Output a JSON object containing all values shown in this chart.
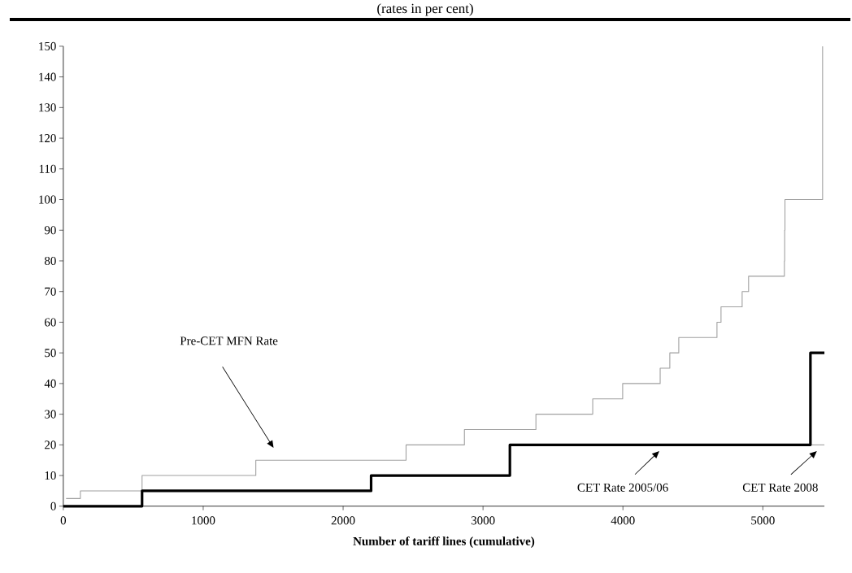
{
  "chart_data": {
    "type": "step",
    "subtitle": "(rates in per cent)",
    "xlabel": "Number of tariff lines (cumulative)",
    "xlim": [
      0,
      5440
    ],
    "ylim": [
      0,
      150
    ],
    "xticks": [
      0,
      1000,
      2000,
      3000,
      4000,
      5000
    ],
    "yticks": [
      0,
      10,
      20,
      30,
      40,
      50,
      60,
      70,
      80,
      90,
      100,
      110,
      120,
      130,
      140,
      150
    ],
    "grid": false,
    "marker": "none",
    "series": [
      {
        "color": "#a0a0a0",
        "x": [
          20,
          122,
          563,
          1376,
          2450,
          2867,
          3378,
          3784,
          3998,
          4266,
          4335,
          4399,
          4672,
          4701,
          4852,
          4898,
          5154,
          5156,
          5158,
          5427
        ],
        "values": [
          2.5,
          5,
          10,
          15,
          20,
          25,
          30,
          35,
          40,
          45,
          50,
          55,
          60,
          65,
          70,
          75,
          80,
          90,
          100,
          150
        ]
      },
      {
        "color": "#a0a0a0",
        "x": [
          5340,
          5440
        ],
        "values": [
          20,
          20
        ]
      },
      {
        "color": "#000000",
        "x": [
          0,
          563,
          2200,
          3192,
          5340,
          5440
        ],
        "values": [
          0,
          5,
          10,
          20,
          50,
          50
        ]
      }
    ],
    "annotations": [
      "Pre-CET MFN Rate",
      "CET Rate 2005/06",
      "CET Rate 2008"
    ]
  }
}
